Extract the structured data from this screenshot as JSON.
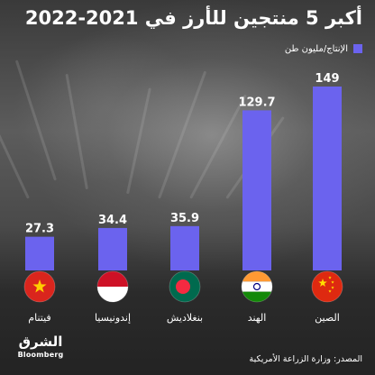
{
  "title": "أكبر 5 منتجين للأرز في 2021-2022",
  "legend": {
    "label": "الإنتاج/مليون طن",
    "color": "#6b63ee"
  },
  "source": "المصدر: وزارة الزراعة الأمريكية",
  "logo": {
    "arabic": "الشرق",
    "english": "Bloomberg"
  },
  "chart_data": {
    "type": "bar",
    "orientation": "vertical",
    "categories": [
      "فيتنام",
      "إندونيسيا",
      "بنغلاديش",
      "الهند",
      "الصين"
    ],
    "values": [
      27.3,
      34.4,
      35.9,
      129.7,
      149
    ],
    "value_labels": [
      "27.3",
      "34.4",
      "35.9",
      "129.7",
      "149"
    ],
    "series": [
      {
        "name": "الإنتاج/مليون طن",
        "values": [
          27.3,
          34.4,
          35.9,
          129.7,
          149
        ]
      }
    ],
    "flag_icons": [
      "vietnam-flag-icon",
      "indonesia-flag-icon",
      "bangladesh-flag-icon",
      "india-flag-icon",
      "china-flag-icon"
    ],
    "bar_color": "#6b63ee",
    "grid": false,
    "legend_position": "top-right"
  }
}
